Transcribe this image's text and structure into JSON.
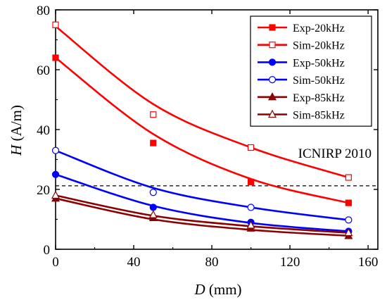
{
  "chart_data": {
    "type": "scatter",
    "xlabel_var": "D",
    "xlabel_unit": " (mm)",
    "ylabel_var": "H",
    "ylabel_unit": " (A/m)",
    "xlim": [
      0,
      165
    ],
    "ylim": [
      0,
      80
    ],
    "xticks": [
      0,
      40,
      80,
      120,
      160
    ],
    "yticks": [
      0,
      20,
      40,
      60,
      80
    ],
    "grid": false,
    "legend_position": "top-right",
    "series": [
      {
        "name": "Exp-20kHz",
        "color": "#ff0000",
        "marker": "square-filled",
        "x": [
          0,
          50,
          100,
          150
        ],
        "y": [
          64,
          35.5,
          22.5,
          15.5
        ],
        "fit": [
          64,
          38.5,
          23.5,
          15.5
        ]
      },
      {
        "name": "Sim-20kHz",
        "color": "#ff0000",
        "marker": "square-open",
        "x": [
          0,
          50,
          100,
          150
        ],
        "y": [
          75,
          45,
          34,
          24
        ],
        "fit": [
          74.5,
          48.5,
          34,
          24
        ]
      },
      {
        "name": "Exp-50kHz",
        "color": "#0000ff",
        "marker": "circle-filled",
        "x": [
          0,
          50,
          100,
          150
        ],
        "y": [
          25,
          14,
          9,
          6
        ],
        "fit": [
          25,
          14.5,
          8.8,
          6
        ]
      },
      {
        "name": "Sim-50kHz",
        "color": "#0000ff",
        "marker": "circle-open",
        "x": [
          0,
          50,
          100,
          150
        ],
        "y": [
          33,
          19,
          14,
          9.8
        ],
        "fit": [
          33,
          20.5,
          14,
          9.8
        ]
      },
      {
        "name": "Exp-85kHz",
        "color": "#8b0000",
        "marker": "triangle-filled",
        "x": [
          0,
          50,
          100,
          150
        ],
        "y": [
          17,
          10.5,
          7,
          4.5
        ],
        "fit": [
          17,
          10,
          6.5,
          4.5
        ]
      },
      {
        "name": "Sim-85kHz",
        "color": "#8b0000",
        "marker": "triangle-open",
        "x": [
          0,
          50,
          100,
          150
        ],
        "y": [
          18,
          11.5,
          8,
          5.5
        ],
        "fit": [
          18,
          11.2,
          7.7,
          5.5
        ]
      }
    ],
    "reference_line": {
      "label": "ICNIRP 2010",
      "y": 21.2,
      "style": "dashed"
    }
  }
}
